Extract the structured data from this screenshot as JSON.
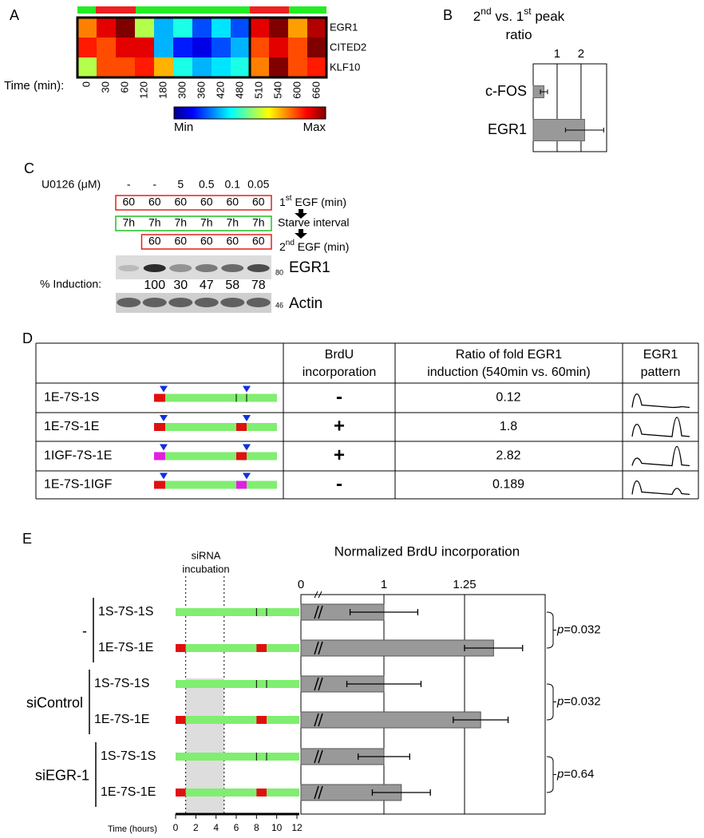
{
  "A": {
    "label": "A",
    "genes": [
      "EGR1",
      "CITED2",
      "KLF10"
    ],
    "time_label": "Time (min):",
    "times": [
      0,
      30,
      60,
      120,
      180,
      300,
      360,
      420,
      480,
      510,
      540,
      600,
      660
    ],
    "values": [
      [
        0.75,
        0.9,
        1.0,
        0.55,
        0.3,
        0.4,
        0.2,
        0.35,
        0.2,
        0.9,
        1.0,
        0.72,
        0.95
      ],
      [
        0.85,
        0.8,
        0.9,
        0.9,
        0.3,
        0.15,
        0.1,
        0.2,
        0.3,
        0.8,
        0.9,
        0.8,
        1.0
      ],
      [
        0.55,
        0.8,
        0.8,
        0.85,
        0.7,
        0.4,
        0.3,
        0.35,
        0.4,
        0.75,
        1.0,
        0.8,
        0.85
      ]
    ],
    "colorbar": [
      "Min",
      "Max"
    ]
  },
  "B": {
    "label": "B",
    "title": [
      [
        {
          "t": "2"
        },
        {
          "t": "nd",
          "sup": true
        },
        {
          "t": " vs. 1"
        },
        {
          "t": "st",
          "sup": true
        },
        {
          "t": " peak"
        }
      ],
      [
        {
          "t": "ratio"
        }
      ]
    ],
    "categories": [
      "c-FOS",
      "EGR1"
    ],
    "values": [
      0.45,
      2.15
    ],
    "errors": [
      0.15,
      0.8
    ],
    "xlim": [
      0,
      3.07
    ],
    "xticks": [
      1,
      2
    ],
    "color": "#999999"
  },
  "C": {
    "label": "C",
    "treatment_label": "U0126 (μM)",
    "doses": [
      "-",
      "-",
      "5",
      "0.5",
      "0.1",
      "0.05"
    ],
    "first_egf": [
      60,
      60,
      60,
      60,
      60,
      60
    ],
    "first_label": [
      {
        "t": "1"
      },
      {
        "t": "st",
        "sup": true
      },
      {
        "t": " EGF (min)"
      }
    ],
    "starve": [
      "7h",
      "7h",
      "7h",
      "7h",
      "7h",
      "7h"
    ],
    "starve_label": "Starve interval",
    "second_egf": [
      60,
      60,
      60,
      60,
      60
    ],
    "second_label": [
      {
        "t": "2"
      },
      {
        "t": "nd",
        "sup": true
      },
      {
        "t": " EGF (min)"
      }
    ],
    "blot1": {
      "label": "EGR1",
      "marker": "80"
    },
    "induction_label": "% Induction:",
    "induction": [
      100,
      30,
      47,
      58,
      78
    ],
    "blot2": {
      "label": "Actin",
      "marker": "46"
    }
  },
  "D": {
    "label": "D",
    "headers": [
      [
        "BrdU",
        "incorporation"
      ],
      [
        "Ratio of fold EGR1",
        "induction (540min vs. 60min)"
      ],
      [
        "EGR1",
        "pattern"
      ]
    ],
    "rows": [
      {
        "name": "1E-7S-1S",
        "brdu": "-",
        "ratio": 0.12
      },
      {
        "name": "1E-7S-1E",
        "brdu": "+",
        "ratio": 1.8
      },
      {
        "name": "1IGF-7S-1E",
        "brdu": "+",
        "ratio": 2.82
      },
      {
        "name": "1E-7S-1IGF",
        "brdu": "-",
        "ratio": 0.189
      }
    ]
  },
  "E": {
    "label": "E",
    "incubation_label": [
      "siRNA",
      "incubation"
    ],
    "chart_title": "Normalized BrdU incorporation",
    "groups": [
      {
        "name": "-",
        "rows": [
          {
            "name": "1S-7S-1S",
            "value": 1,
            "error": 0.105
          },
          {
            "name": "1E-7S-1E",
            "value": 1.34,
            "error": 0.09
          }
        ]
      },
      {
        "name": "siControl",
        "rows": [
          {
            "name": "1S-7S-1S",
            "value": 1,
            "error": 0.115
          },
          {
            "name": "1E-7S-1E",
            "value": 1.3,
            "error": 0.085
          }
        ]
      },
      {
        "name": "siEGR-1",
        "rows": [
          {
            "name": "1S-7S-1S",
            "value": 1,
            "error": 0.08
          },
          {
            "name": "1E-7S-1E",
            "value": 1.054,
            "error": 0.09
          }
        ]
      }
    ],
    "xlim": [
      0.75,
      1.5
    ],
    "xticks": [
      0,
      1,
      1.25
    ],
    "color": "#999999",
    "p_values": [
      {
        "symbol": "p",
        "text": "=0.032"
      },
      {
        "symbol": "p",
        "text": "=0.032"
      },
      {
        "symbol": "p",
        "text": "=0.64"
      }
    ],
    "time_axis": {
      "label": "Time (hours)",
      "lim": [
        0,
        12
      ],
      "ticks": [
        0,
        2,
        4,
        6,
        8,
        10,
        12
      ]
    }
  }
}
